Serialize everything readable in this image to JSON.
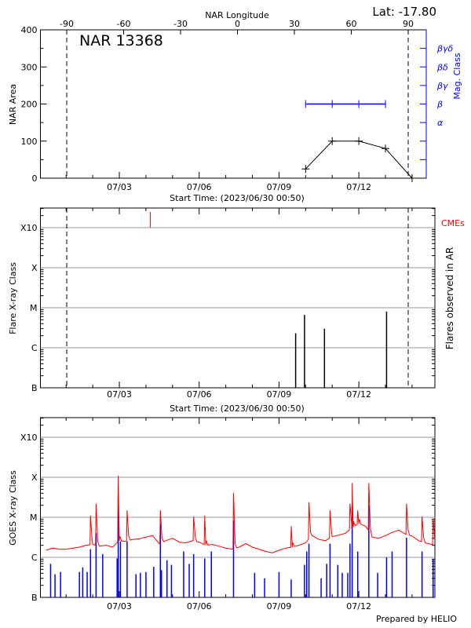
{
  "footer": "Prepared by HELIO",
  "colors": {
    "area": "#000000",
    "mag_class": "#0000ff",
    "goes_long": "#ff0000",
    "goes_short": "#0000ff",
    "cme": "#ff0000",
    "grid": "#999999"
  },
  "chart_data": [
    {
      "type": "line",
      "title": "NAR 13368",
      "corner_label": "Lat: -17.80",
      "xlabel": "Start Time: (2023/06/30 00:50)",
      "ylabel": "NAR Area",
      "ylabel_right": "Mag. Class",
      "top_axis_label": "NAR Longitude",
      "top_axis_ticks": [
        "-90",
        "-60",
        "-30",
        "0",
        "30",
        "60",
        "90"
      ],
      "top_axis_values": [
        -90,
        -60,
        -30,
        0,
        30,
        60,
        90
      ],
      "xticks": [
        "07/03",
        "07/06",
        "07/09",
        "07/12"
      ],
      "yticks": [
        "0",
        "100",
        "200",
        "300",
        "400"
      ],
      "ylim": [
        0,
        400
      ],
      "right_ticks": [
        "α",
        "β",
        "βγ",
        "βδ",
        "βγδ"
      ],
      "limb_markers_longitude": [
        -90,
        90
      ],
      "series": [
        {
          "name": "NAR Area",
          "x": [
            "07/10 00:00",
            "07/11 00:00",
            "07/12 00:00",
            "07/13 00:00",
            "07/14 00:00"
          ],
          "values": [
            25,
            100,
            100,
            80,
            0
          ]
        },
        {
          "name": "Mag. Class",
          "x": [
            "07/10 00:00",
            "07/11 00:00",
            "07/12 00:00",
            "07/13 00:00"
          ],
          "values": [
            "β",
            "β",
            "β",
            "β"
          ]
        }
      ]
    },
    {
      "type": "bar",
      "xlabel": "Start Time: (2023/06/30 00:50)",
      "ylabel": "Flare X-ray Class",
      "ylabel_right": "Flares observed in AR",
      "cme_label": "CMEs",
      "xticks": [
        "07/03",
        "07/06",
        "07/09",
        "07/12"
      ],
      "yticks": [
        "B",
        "C",
        "M",
        "X",
        "X10"
      ],
      "yscale": "log",
      "ylim": [
        1e-07,
        0.003
      ],
      "grid": true,
      "flares": {
        "x": [
          "07/09 15:00",
          "07/09 23:00",
          "07/10 17:00",
          "07/13 01:00"
        ],
        "values": [
          2.3e-06,
          6.6e-06,
          3e-06,
          8e-06
        ]
      },
      "cmes": {
        "x": [
          "07/04 04:00"
        ]
      }
    },
    {
      "type": "line",
      "ylabel": "GOES X-ray Class",
      "xticks": [
        "07/03",
        "07/06",
        "07/09",
        "07/12"
      ],
      "yticks": [
        "B",
        "C",
        "M",
        "X",
        "X10"
      ],
      "yscale": "log",
      "ylim": [
        1e-07,
        0.003
      ],
      "grid": true,
      "series": [
        {
          "color": "#ff0000",
          "x": [
            "06/30 06:00",
            "06/30 12:00",
            "06/30 18:00",
            "07/01 00:00",
            "07/01 06:00",
            "07/01 12:00",
            "07/01 18:00",
            "07/02 00:00",
            "07/02 06:00",
            "07/02 12:00",
            "07/02 18:00",
            "07/03 00:00",
            "07/03 06:00",
            "07/03 12:00",
            "07/03 18:00",
            "07/04 00:00",
            "07/04 06:00",
            "07/04 12:00",
            "07/04 18:00",
            "07/05 00:00",
            "07/05 06:00",
            "07/05 12:00",
            "07/05 18:00",
            "07/06 00:00",
            "07/06 06:00",
            "07/06 12:00",
            "07/06 18:00",
            "07/07 00:00",
            "07/07 06:00",
            "07/07 12:00",
            "07/07 18:00",
            "07/08 00:00",
            "07/08 06:00",
            "07/08 12:00",
            "07/08 18:00",
            "07/09 00:00",
            "07/09 06:00",
            "07/09 12:00",
            "07/09 18:00",
            "07/10 00:00",
            "07/10 06:00",
            "07/10 12:00",
            "07/10 18:00",
            "07/11 00:00",
            "07/11 06:00",
            "07/11 12:00",
            "07/11 18:00",
            "07/12 00:00",
            "07/12 06:00",
            "07/12 12:00",
            "07/12 18:00",
            "07/13 00:00",
            "07/13 06:00",
            "07/13 12:00",
            "07/13 18:00",
            "07/14 00:00",
            "07/14 06:00",
            "07/14 12:00",
            "07/14 18:00"
          ],
          "values": [
            1.5e-06,
            1.7e-06,
            1.6e-06,
            1.6e-06,
            1.7e-06,
            1.8e-06,
            2e-06,
            2.1e-06,
            1.9e-06,
            2e-06,
            1.8e-06,
            2.6e-06,
            2.5e-06,
            2.8e-06,
            2.9e-06,
            3.2e-06,
            3.5e-06,
            2.2e-06,
            2.6e-06,
            3e-06,
            2.4e-06,
            2.3e-06,
            2.6e-06,
            2.4e-06,
            2e-06,
            2.1e-06,
            1.9e-06,
            1.7e-06,
            1.6e-06,
            1.8e-06,
            2.2e-06,
            1.8e-06,
            1.6e-06,
            1.4e-06,
            1.3e-06,
            1.5e-06,
            1.7e-06,
            1.8e-06,
            2e-06,
            2.3e-06,
            3.5e-06,
            2.8e-06,
            2.6e-06,
            3.3e-06,
            3.6e-06,
            4e-06,
            5.5e-06,
            7e-06,
            6e-06,
            3.2e-06,
            3e-06,
            3.5e-06,
            4.2e-06,
            4.8e-06,
            3.8e-06,
            3.4e-06,
            2.6e-06,
            2.3e-06,
            2.1e-06
          ],
          "peaks_x": [
            "07/01 22:00",
            "07/02 03:00",
            "07/02 23:00",
            "07/03 07:00",
            "07/04 13:00",
            "07/05 19:00",
            "07/06 05:00",
            "07/07 07:00",
            "07/09 11:00",
            "07/10 03:00",
            "07/10 22:00",
            "07/11 16:00",
            "07/11 18:00",
            "07/11 23:00",
            "07/12 09:00",
            "07/13 19:00",
            "07/14 09:00",
            "07/14 19:00"
          ],
          "peaks": [
            1.1e-05,
            2.2e-05,
            0.00011,
            1.5e-05,
            1.5e-05,
            1.05e-05,
            1.1e-05,
            4.1e-05,
            6e-06,
            2.4e-05,
            1.5e-05,
            2.2e-05,
            7.2e-05,
            1.5e-05,
            7.2e-05,
            2.2e-05,
            1.05e-05,
            9.2e-06
          ]
        },
        {
          "color": "#0000ff",
          "x": [
            "06/30 10:00",
            "06/30 14:00",
            "06/30 19:00",
            "07/01 12:00",
            "07/01 15:00",
            "07/01 19:00",
            "07/01 22:00",
            "07/02 03:00",
            "07/02 09:00",
            "07/02 22:00",
            "07/02 23:00",
            "07/03 01:00",
            "07/03 07:00",
            "07/03 15:00",
            "07/03 19:00",
            "07/04 00:00",
            "07/04 07:00",
            "07/04 13:00",
            "07/04 14:00",
            "07/04 19:00",
            "07/04 23:00",
            "07/05 10:00",
            "07/05 15:00",
            "07/05 19:00",
            "07/06 05:00",
            "07/06 11:00",
            "07/07 07:00",
            "07/08 02:00",
            "07/08 11:00",
            "07/09 00:00",
            "07/09 11:00",
            "07/09 23:00",
            "07/10 01:00",
            "07/10 03:00",
            "07/10 14:00",
            "07/10 19:00",
            "07/10 22:00",
            "07/11 05:00",
            "07/11 09:00",
            "07/11 14:00",
            "07/11 16:00",
            "07/11 18:00",
            "07/11 23:00",
            "07/12 09:00",
            "07/12 17:00",
            "07/13 01:00",
            "07/13 06:00",
            "07/13 19:00",
            "07/14 09:00",
            "07/14 19:00"
          ],
          "values": [
            6.9e-07,
            3.8e-07,
            4.3e-07,
            4.3e-07,
            5.6e-07,
            4.3e-07,
            1.6e-06,
            4e-06,
            1.2e-06,
            9.4e-07,
            3.2e-05,
            2.5e-06,
            2.5e-06,
            3.8e-07,
            4.1e-07,
            4.3e-07,
            5.8e-07,
            7.2e-06,
            4.8e-07,
            8.5e-07,
            6.5e-07,
            1.4e-06,
            6.9e-07,
            1.2e-06,
            9.4e-07,
            1.4e-06,
            8.3e-06,
            4.1e-07,
            3e-07,
            4.3e-07,
            2.8e-07,
            6.5e-07,
            1.4e-06,
            2.2e-06,
            3e-07,
            6.9e-07,
            2.2e-06,
            6.5e-07,
            4.1e-07,
            4.1e-07,
            2.2e-06,
            1.9e-05,
            1.4e-06,
            2e-05,
            4.1e-07,
            1e-06,
            1.4e-06,
            3.1e-06,
            1.4e-06,
            9e-07
          ]
        }
      ]
    }
  ]
}
